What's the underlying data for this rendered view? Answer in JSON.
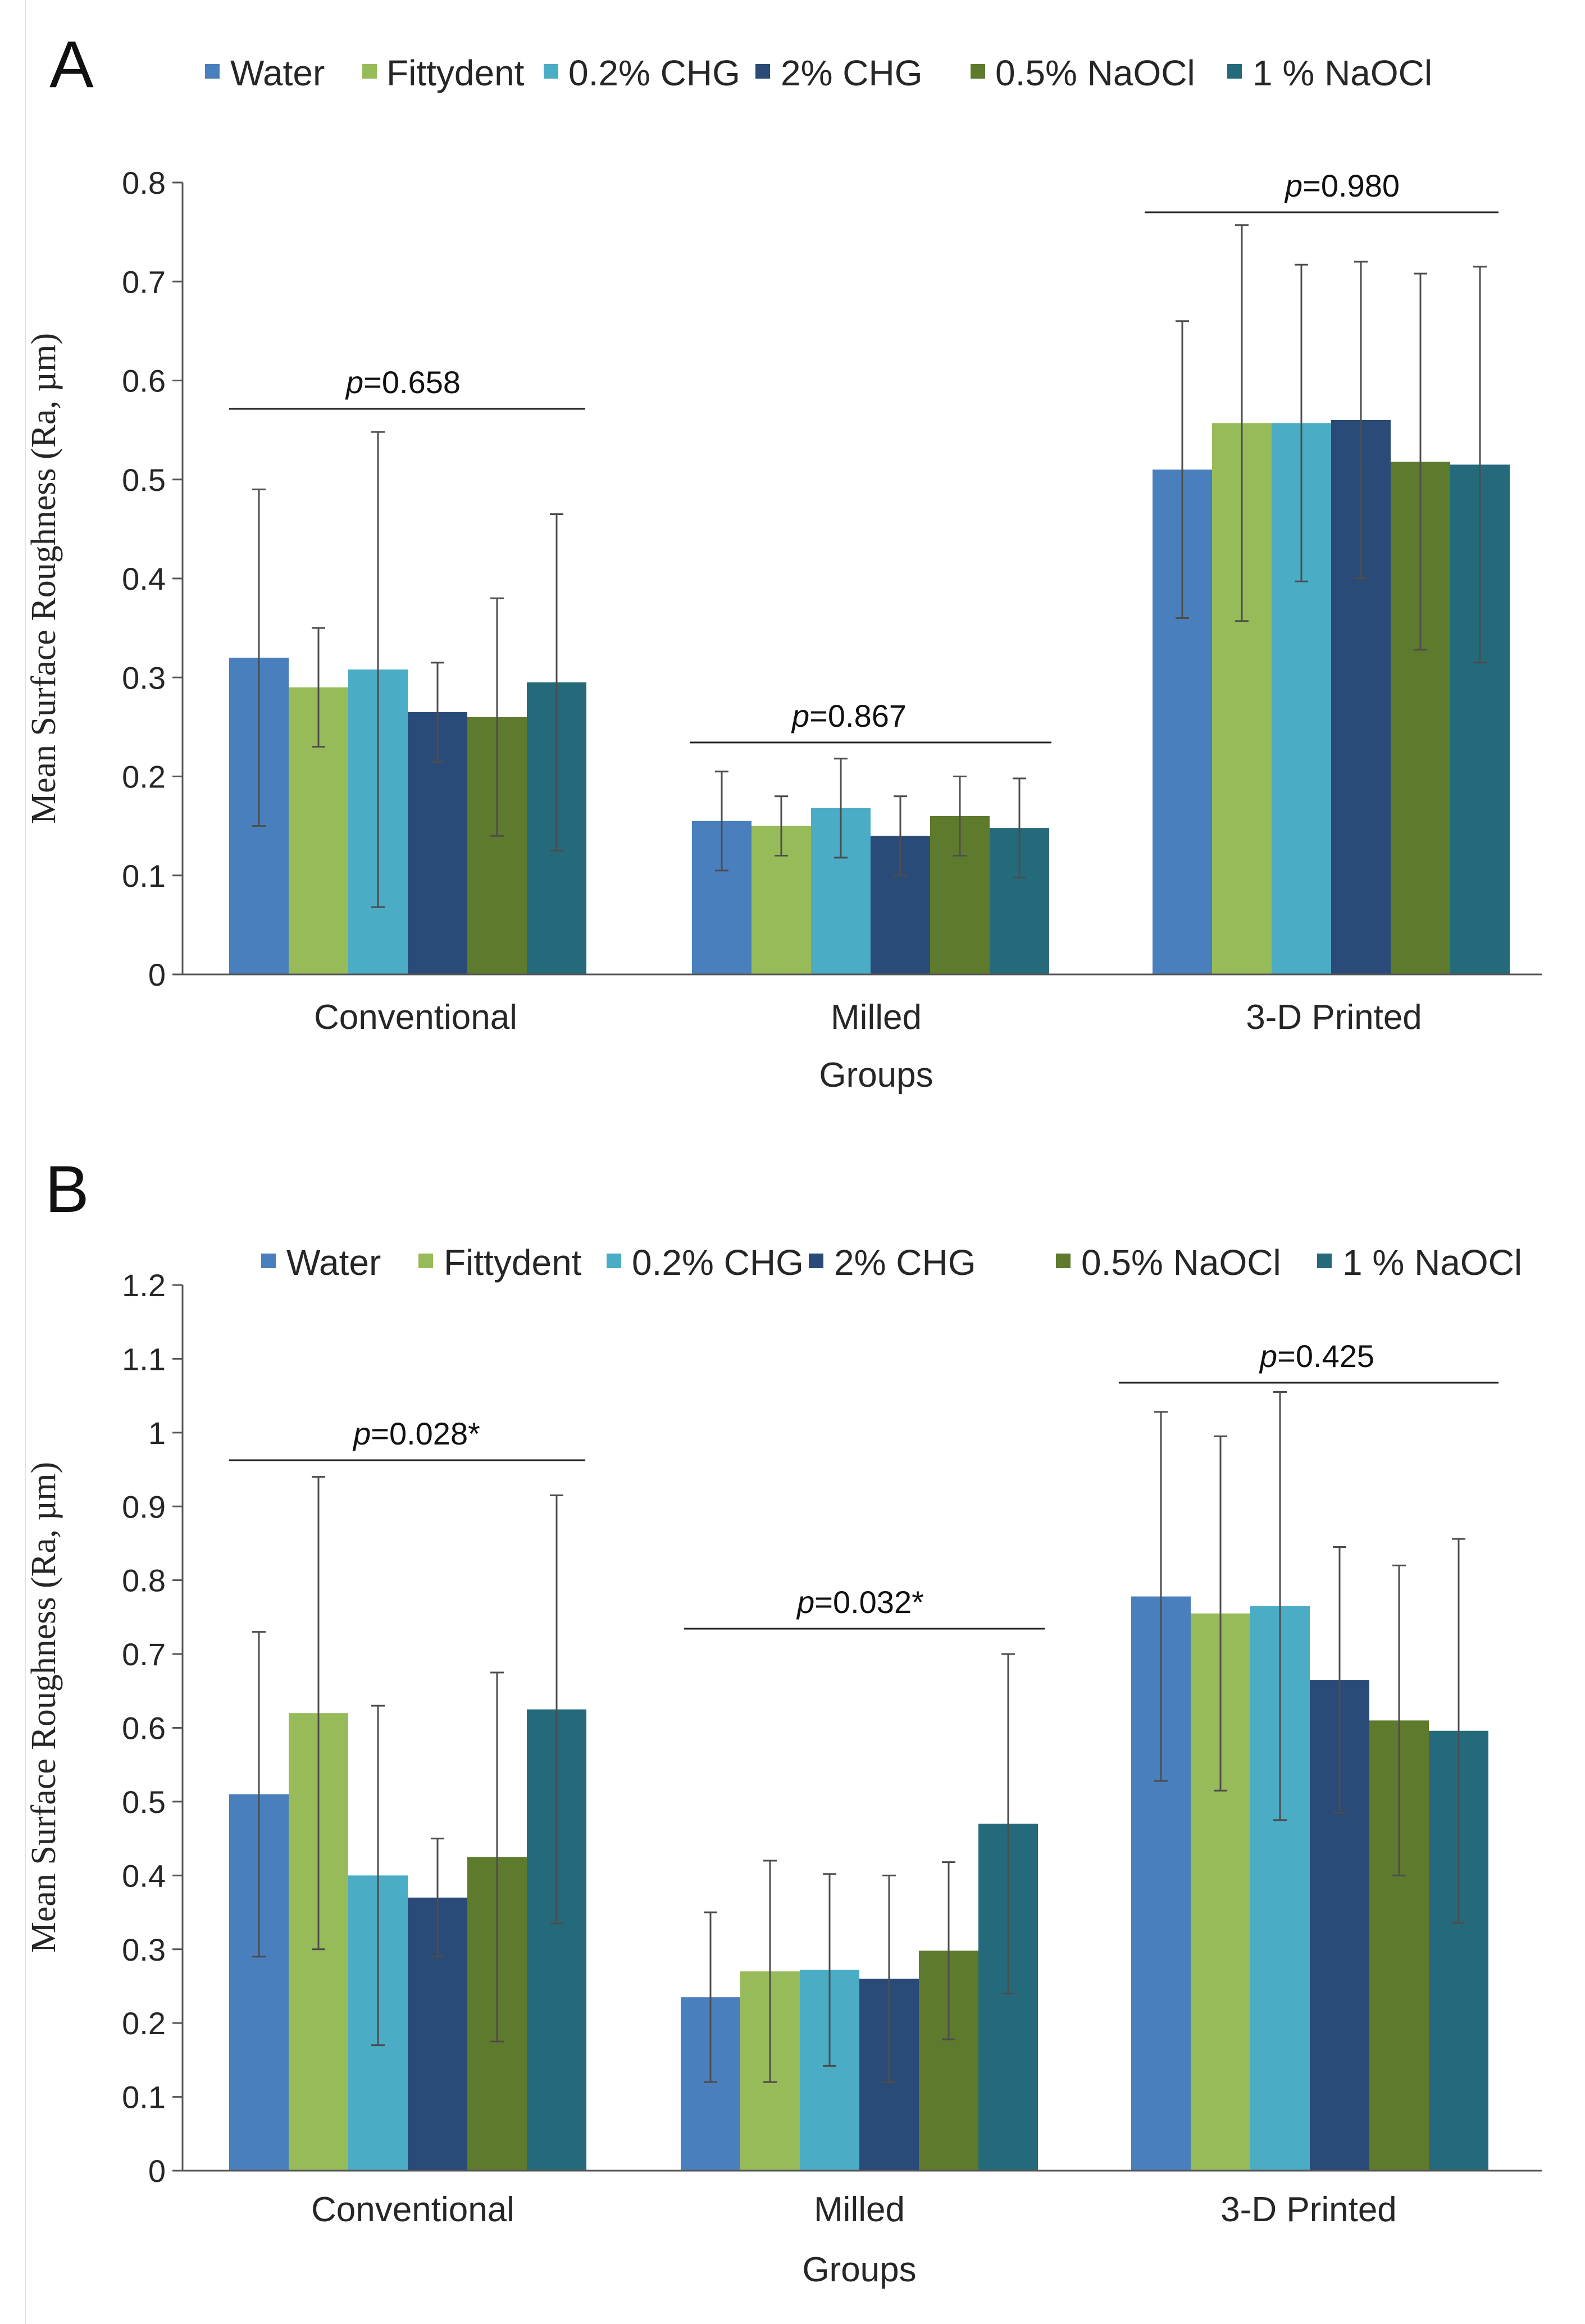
{
  "series": [
    {
      "name": "Water",
      "color": "#4a7fbe"
    },
    {
      "name": "Fittydent",
      "color": "#98bb5a"
    },
    {
      "name": "0.2% CHG",
      "color": "#4aacc5"
    },
    {
      "name": "2% CHG",
      "color": "#2a4a78"
    },
    {
      "name": "0.5% NaOCl",
      "color": "#5e7a2d"
    },
    {
      "name": "1 % NaOCl",
      "color": "#246a7b"
    }
  ],
  "chart_data": [
    {
      "type": "bar",
      "panel_label": "A",
      "xlabel": "Groups",
      "ylabel": "Mean Surface Roughness (Ra, µm)",
      "ylim": [
        0,
        0.8
      ],
      "yticks": [
        "0",
        "0.1",
        "0.2",
        "0.3",
        "0.4",
        "0.5",
        "0.6",
        "0.7",
        "0.8"
      ],
      "categories": [
        "Conventional",
        "Milled",
        "3-D Printed"
      ],
      "series": [
        {
          "name": "Water",
          "values": [
            0.32,
            0.155,
            0.51
          ],
          "errors": [
            0.17,
            0.05,
            0.15
          ]
        },
        {
          "name": "Fittydent",
          "values": [
            0.29,
            0.15,
            0.557
          ],
          "errors": [
            0.06,
            0.03,
            0.2
          ]
        },
        {
          "name": "0.2% CHG",
          "values": [
            0.308,
            0.168,
            0.557
          ],
          "errors": [
            0.24,
            0.05,
            0.16
          ]
        },
        {
          "name": "2% CHG",
          "values": [
            0.265,
            0.14,
            0.56
          ],
          "errors": [
            0.05,
            0.04,
            0.16
          ]
        },
        {
          "name": "0.5% NaOCl",
          "values": [
            0.26,
            0.16,
            0.518
          ],
          "errors": [
            0.12,
            0.04,
            0.19
          ]
        },
        {
          "name": "1 % NaOCl",
          "values": [
            0.295,
            0.148,
            0.515
          ],
          "errors": [
            0.17,
            0.05,
            0.2
          ]
        }
      ],
      "annotations": [
        {
          "prefix": "p",
          "text": "=0.658"
        },
        {
          "prefix": "p",
          "text": "=0.867"
        },
        {
          "prefix": "p",
          "text": "=0.980"
        }
      ]
    },
    {
      "type": "bar",
      "panel_label": "B",
      "xlabel": "Groups",
      "ylabel": "Mean Surface Roughness (Ra, µm)",
      "ylim": [
        0,
        1.2
      ],
      "yticks": [
        "0",
        "0.1",
        "0.2",
        "0.3",
        "0.4",
        "0.5",
        "0.6",
        "0.7",
        "0.8",
        "0.9",
        "1",
        "1.1",
        "1.2"
      ],
      "categories": [
        "Conventional",
        "Milled",
        "3-D Printed"
      ],
      "series": [
        {
          "name": "Water",
          "values": [
            0.51,
            0.235,
            0.778
          ],
          "errors": [
            0.22,
            0.115,
            0.25
          ]
        },
        {
          "name": "Fittydent",
          "values": [
            0.62,
            0.27,
            0.755
          ],
          "errors": [
            0.32,
            0.15,
            0.24
          ]
        },
        {
          "name": "0.2% CHG",
          "values": [
            0.4,
            0.272,
            0.765
          ],
          "errors": [
            0.23,
            0.13,
            0.29
          ]
        },
        {
          "name": "2% CHG",
          "values": [
            0.37,
            0.26,
            0.665
          ],
          "errors": [
            0.08,
            0.14,
            0.18
          ]
        },
        {
          "name": "0.5% NaOCl",
          "values": [
            0.425,
            0.298,
            0.61
          ],
          "errors": [
            0.25,
            0.12,
            0.21
          ]
        },
        {
          "name": "1 % NaOCl",
          "values": [
            0.625,
            0.47,
            0.596
          ],
          "errors": [
            0.29,
            0.23,
            0.26
          ]
        }
      ],
      "annotations": [
        {
          "prefix": "p",
          "text": "=0.028*"
        },
        {
          "prefix": "p",
          "text": "=0.032*"
        },
        {
          "prefix": "p",
          "text": "=0.425"
        }
      ]
    }
  ]
}
